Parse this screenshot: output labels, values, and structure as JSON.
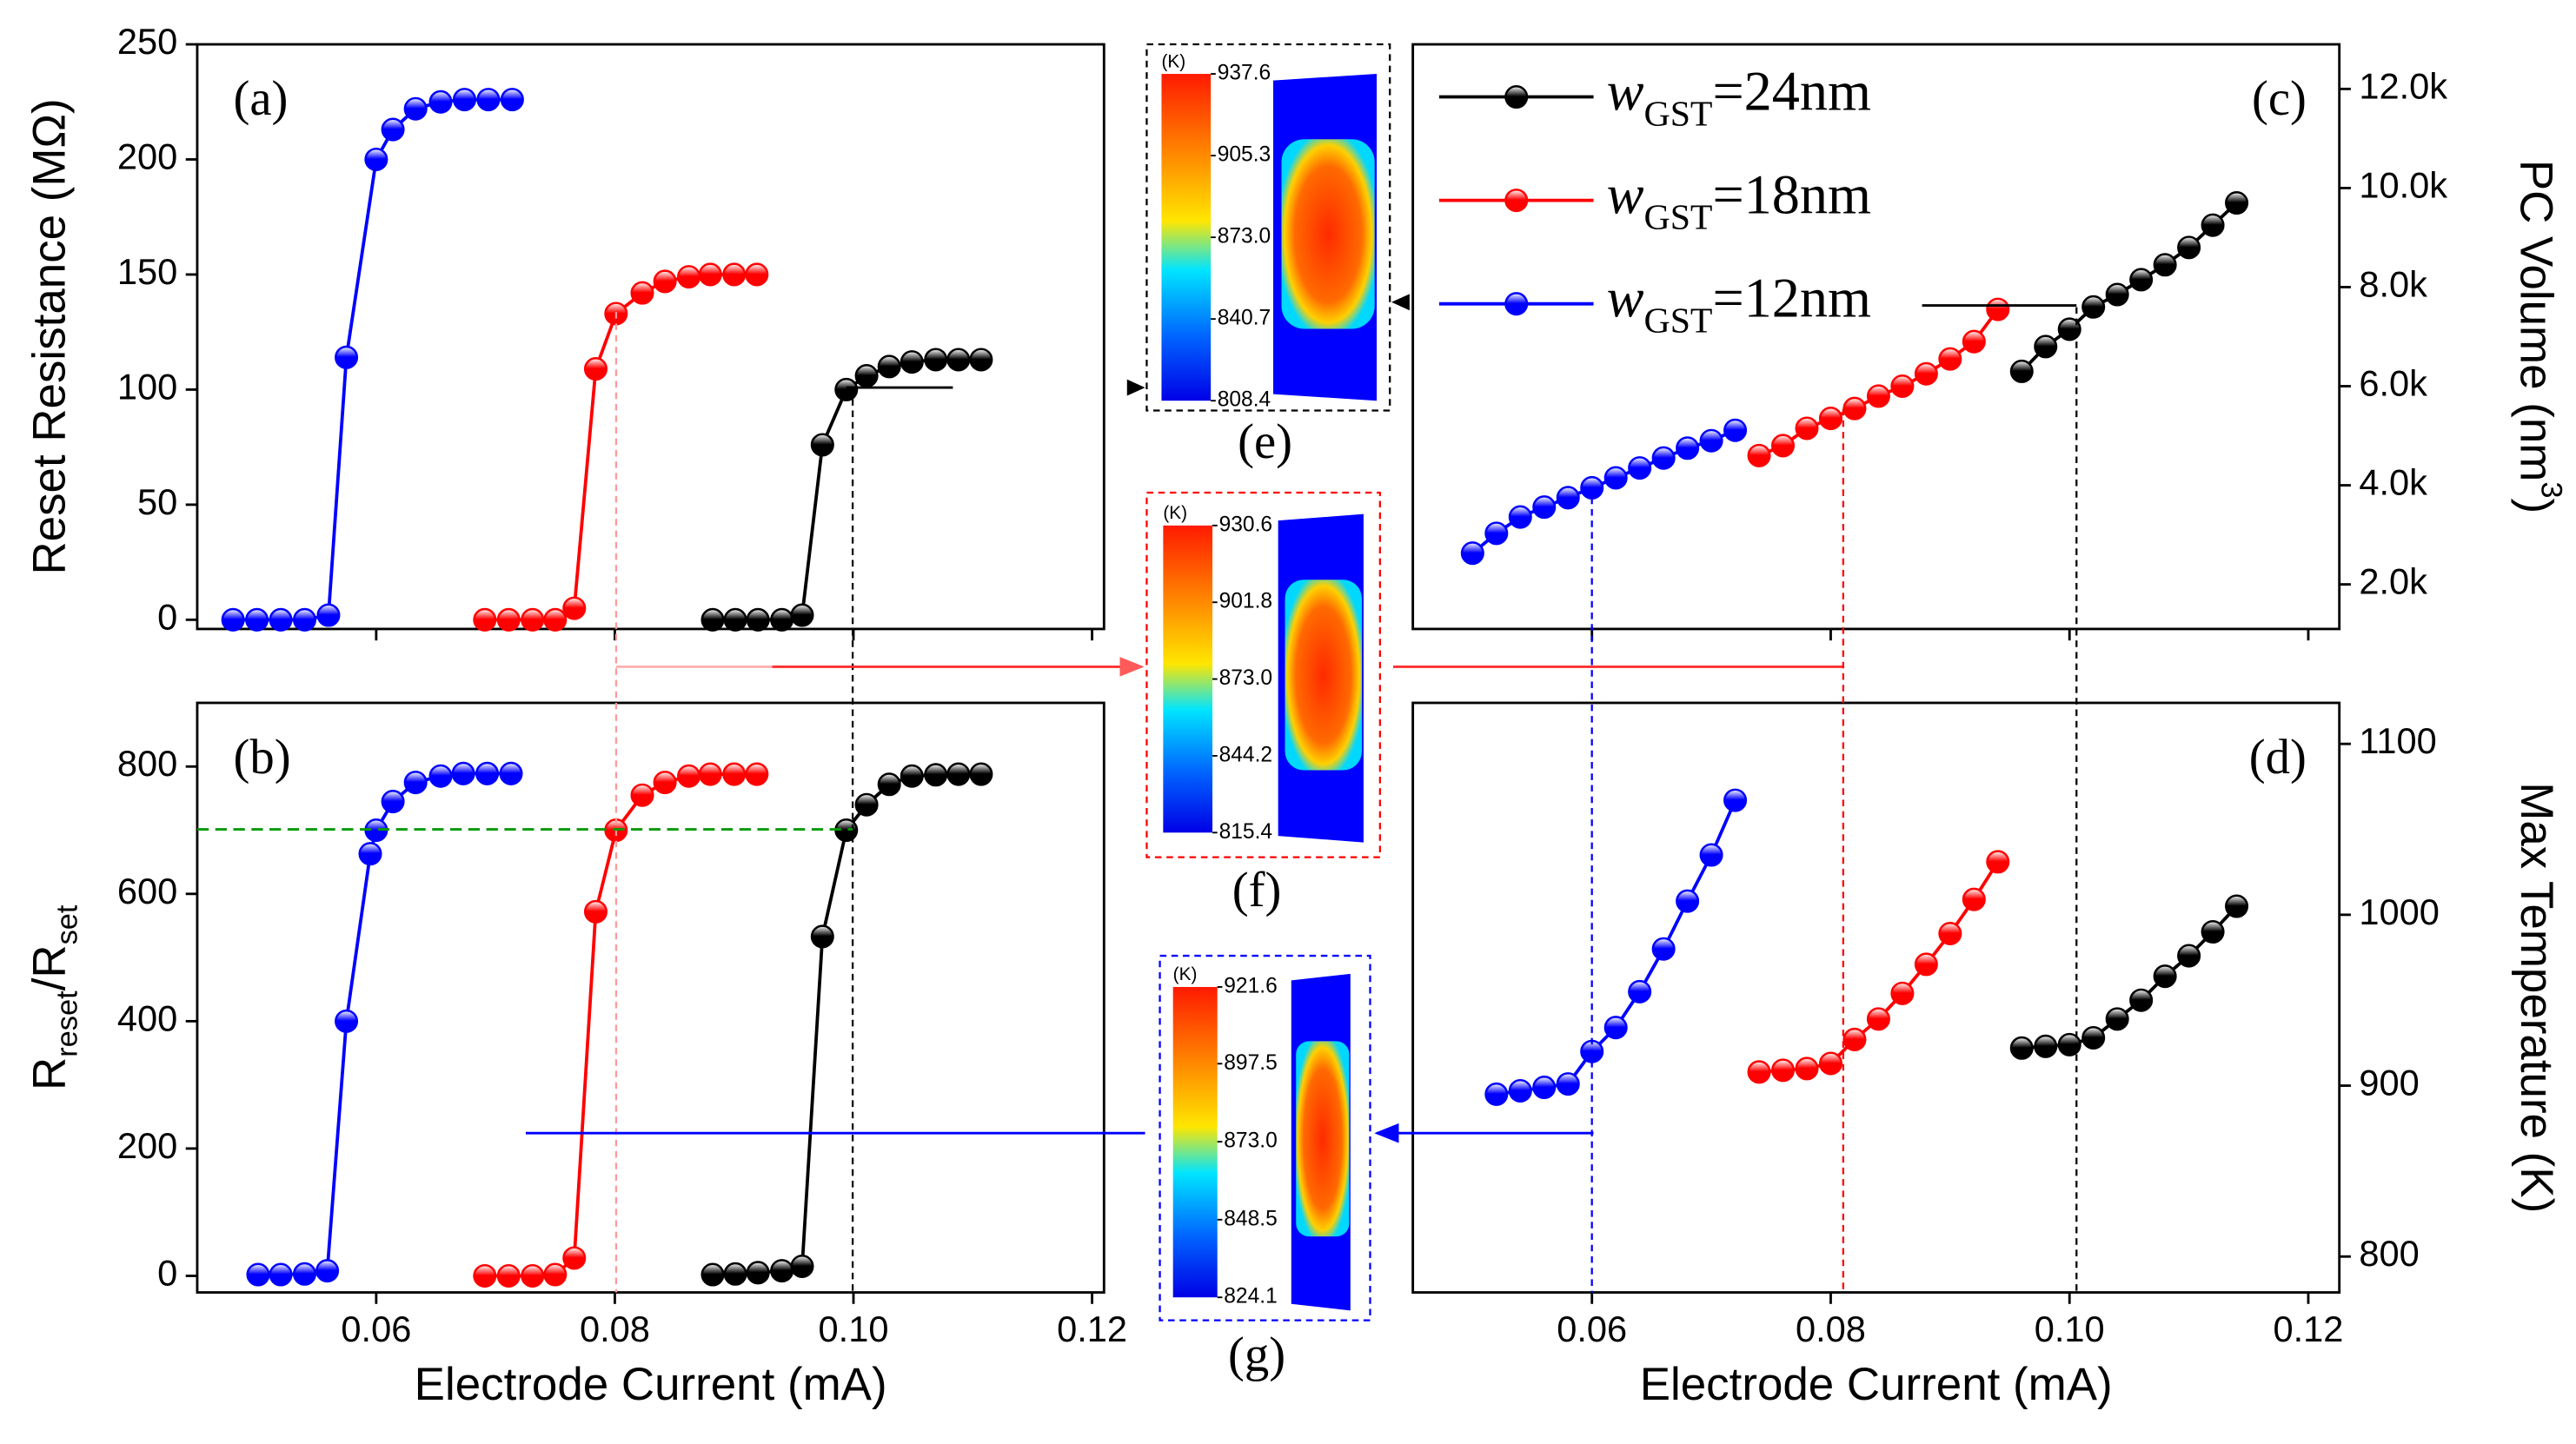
{
  "chart_data": [
    {
      "type": "line",
      "panel_label": "(a)",
      "ylabel": "Reset Resistance (MΩ)",
      "xlim": [
        0.045,
        0.121
      ],
      "ylim": [
        -4,
        250
      ],
      "xticks": [
        0.06,
        0.08,
        0.1,
        0.12
      ],
      "xtick_labels": false,
      "yticks": [
        0,
        50,
        100,
        150,
        200,
        250
      ],
      "yaxis": "left",
      "series": [
        {
          "color": "#0000ff",
          "x": [
            0.048,
            0.05,
            0.052,
            0.054,
            0.056,
            0.0575,
            0.06,
            0.0614,
            0.0633,
            0.0654,
            0.0674,
            0.0694,
            0.0714
          ],
          "values": [
            0,
            0,
            0,
            0,
            2,
            114,
            200,
            213,
            222,
            225,
            226,
            226,
            226
          ]
        },
        {
          "color": "#ff0000",
          "x": [
            0.0691,
            0.0711,
            0.0731,
            0.075,
            0.0766,
            0.0784,
            0.0801,
            0.0823,
            0.0842,
            0.0862,
            0.088,
            0.09,
            0.0919
          ],
          "values": [
            0,
            0,
            0,
            0,
            5,
            109,
            133,
            142,
            147,
            149,
            150,
            150,
            150
          ]
        },
        {
          "color": "#000000",
          "x": [
            0.0882,
            0.0901,
            0.092,
            0.094,
            0.0957,
            0.0974,
            0.0994,
            0.1011,
            0.103,
            0.1049,
            0.1069,
            0.1088,
            0.1107
          ],
          "values": [
            0,
            0,
            0,
            0,
            2,
            76,
            100,
            106,
            110,
            112,
            113,
            113,
            113
          ]
        }
      ]
    },
    {
      "type": "line",
      "panel_label": "(b)",
      "ylabel": [
        {
          "text": "R"
        },
        {
          "text": "reset",
          "sub": true
        },
        {
          "text": "/R"
        },
        {
          "text": "set",
          "sub": true
        }
      ],
      "xlabel": "Electrode Current (mA)",
      "xlim": [
        0.045,
        0.121
      ],
      "ylim": [
        -26,
        900
      ],
      "xticks": [
        0.06,
        0.08,
        {
          "value": 0.1,
          "label": "0.10"
        },
        0.12
      ],
      "yticks": [
        0,
        200,
        400,
        600,
        800
      ],
      "yaxis": "left",
      "series": [
        {
          "color": "#0000ff",
          "x": [
            0.0501,
            0.052,
            0.054,
            0.0559,
            0.0575,
            0.0595,
            0.06,
            0.0614,
            0.0633,
            0.0654,
            0.0673,
            0.0693,
            0.0713
          ],
          "values": [
            2,
            2,
            3,
            8,
            400,
            663,
            700,
            745,
            775,
            785,
            789,
            789,
            789
          ]
        },
        {
          "color": "#ff0000",
          "x": [
            0.0691,
            0.0711,
            0.0731,
            0.075,
            0.0766,
            0.0784,
            0.0801,
            0.0823,
            0.0842,
            0.0862,
            0.088,
            0.09,
            0.0919
          ],
          "values": [
            0,
            0,
            0,
            2,
            28,
            572,
            700,
            755,
            775,
            785,
            788,
            788,
            788
          ]
        },
        {
          "color": "#000000",
          "x": [
            0.0882,
            0.0901,
            0.092,
            0.094,
            0.0957,
            0.0974,
            0.0994,
            0.1011,
            0.103,
            0.1049,
            0.1069,
            0.1088,
            0.1107
          ],
          "values": [
            2,
            3,
            5,
            8,
            15,
            533,
            700,
            740,
            772,
            785,
            787,
            788,
            788
          ]
        }
      ]
    },
    {
      "type": "line",
      "panel_label": "(c)",
      "ylabel": [
        {
          "text": "PC Volume (nm"
        },
        {
          "text": "3",
          "sup": true
        },
        {
          "text": ")"
        }
      ],
      "xlim": [
        0.045,
        0.1226
      ],
      "ylim": [
        1100,
        12900
      ],
      "xticks": [
        0.06,
        0.08,
        0.1,
        0.12
      ],
      "xtick_labels": false,
      "yticks": [
        {
          "value": 2000,
          "label": "2.0k"
        },
        {
          "value": 4000,
          "label": "4.0k"
        },
        {
          "value": 6000,
          "label": "6.0k"
        },
        {
          "value": 8000,
          "label": "8.0k"
        },
        {
          "value": 10000,
          "label": "10.0k"
        },
        {
          "value": 12000,
          "label": "12.0k"
        }
      ],
      "yaxis": "right",
      "legend": "upper left",
      "series": [
        {
          "name": "wGST=24nm",
          "color": "#000000",
          "x": [
            0.096,
            0.098,
            0.1,
            0.102,
            0.104,
            0.106,
            0.108,
            0.11,
            0.112,
            0.114
          ],
          "values": [
            6300,
            6800,
            7150,
            7600,
            7850,
            8150,
            8450,
            8800,
            9250,
            9700
          ]
        },
        {
          "name": "wGST=18nm",
          "color": "#ff0000",
          "x": [
            0.074,
            0.076,
            0.078,
            0.08,
            0.082,
            0.084,
            0.086,
            0.088,
            0.09,
            0.092,
            0.094
          ],
          "values": [
            4600,
            4800,
            5150,
            5350,
            5550,
            5800,
            6000,
            6250,
            6550,
            6900,
            7550
          ]
        },
        {
          "name": "wGST=12nm",
          "color": "#0000ff",
          "x": [
            0.05,
            0.052,
            0.054,
            0.056,
            0.058,
            0.06,
            0.062,
            0.064,
            0.066,
            0.068,
            0.07,
            0.072
          ],
          "values": [
            2630,
            3030,
            3360,
            3560,
            3750,
            3950,
            4150,
            4350,
            4550,
            4750,
            4900,
            5110
          ]
        }
      ]
    },
    {
      "type": "line",
      "panel_label": "(d)",
      "ylabel": "Max Temperature (K)",
      "xlabel": "Electrode Current (mA)",
      "xlim": [
        0.045,
        0.1226
      ],
      "ylim": [
        779,
        1124
      ],
      "xticks": [
        0.06,
        0.08,
        {
          "value": 0.1,
          "label": "0.10"
        },
        0.12
      ],
      "yticks": [
        800,
        900,
        1000,
        1100
      ],
      "yaxis": "right",
      "series": [
        {
          "color": "#000000",
          "x": [
            0.096,
            0.098,
            0.1,
            0.102,
            0.104,
            0.106,
            0.108,
            0.11,
            0.112,
            0.114
          ],
          "values": [
            922,
            923,
            924,
            928,
            939,
            950,
            964,
            976,
            990,
            1005
          ]
        },
        {
          "color": "#ff0000",
          "x": [
            0.074,
            0.076,
            0.078,
            0.08,
            0.082,
            0.084,
            0.086,
            0.088,
            0.09,
            0.092,
            0.094
          ],
          "values": [
            908,
            909,
            910,
            913,
            927,
            939,
            954,
            971,
            989,
            1009,
            1031
          ]
        },
        {
          "color": "#0000ff",
          "x": [
            0.052,
            0.054,
            0.056,
            0.058,
            0.06,
            0.062,
            0.064,
            0.066,
            0.068,
            0.07,
            0.072
          ],
          "values": [
            895,
            897,
            899,
            901,
            920,
            934,
            955,
            980,
            1008,
            1035,
            1067
          ]
        }
      ]
    }
  ],
  "insets": [
    {
      "label": "(e)",
      "unit": "(K)",
      "border": "#000000",
      "ticks": [
        937.6,
        905.3,
        {
          "value": 873,
          "label": "873.0"
        },
        840.7,
        808.4
      ]
    },
    {
      "label": "(f)",
      "unit": "(K)",
      "border": "#ff0000",
      "ticks": [
        930.6,
        901.8,
        {
          "value": 873,
          "label": "873.0"
        },
        844.2,
        815.4
      ]
    },
    {
      "label": "(g)",
      "unit": "(K)",
      "border": "#0000ff",
      "ticks": [
        921.6,
        897.5,
        {
          "value": 873,
          "label": "873.0"
        },
        848.5,
        824.1
      ]
    }
  ]
}
